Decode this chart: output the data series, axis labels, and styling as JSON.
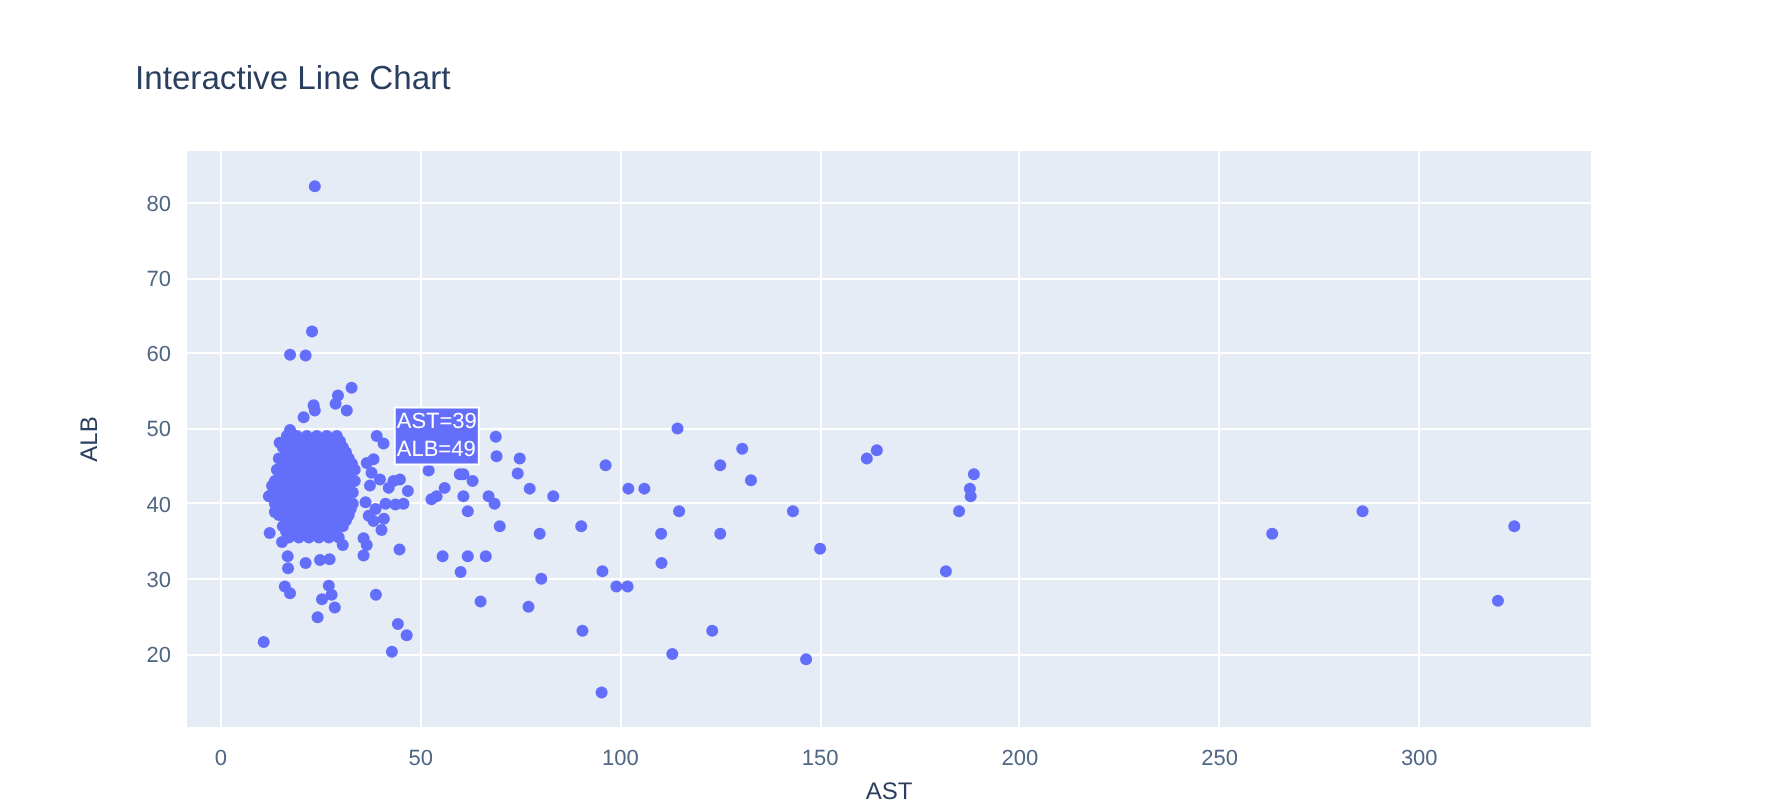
{
  "chart_data": {
    "type": "scatter",
    "title": "Interactive Line Chart",
    "xlabel": "AST",
    "ylabel": "ALB",
    "color": "#636efa",
    "marker": "circle",
    "grid": true,
    "xlim": [
      -8.5,
      343
    ],
    "ylim": [
      10.3,
      86.9
    ],
    "xticks": [
      0,
      50,
      100,
      150,
      200,
      250,
      300
    ],
    "yticks": [
      20,
      30,
      40,
      50,
      60,
      70,
      80
    ],
    "annotations": [
      {
        "text": "AST=39\nALB=49",
        "x": 39,
        "y": 49
      }
    ],
    "x": [
      23.5,
      22.8,
      17.3,
      21.2,
      32.7,
      29.3,
      31.5,
      28.7,
      23.2,
      23.5,
      14.7,
      17.3,
      20.7,
      12.8,
      12,
      13.5,
      12.2,
      15.3,
      16.7,
      16.8,
      16,
      17.3,
      10.7,
      21.2,
      24.2,
      25.3,
      27,
      27.7,
      28.5,
      27.2,
      24.8,
      30.5,
      35.7,
      36.5,
      35.7,
      38.2,
      40.2,
      40.8,
      38.8,
      44.7,
      44.3,
      46.5,
      42.8,
      38.7,
      41.2,
      43.7,
      45.7,
      46.8,
      44.8,
      43.2,
      42,
      39.8,
      37.7,
      36.5,
      38.2,
      39,
      40.7,
      37.3,
      36.2,
      37,
      52,
      52.7,
      54,
      56,
      55.5,
      60,
      61.8,
      66.3,
      65,
      59.8,
      60.7,
      63,
      60.7,
      61.8,
      67,
      68.5,
      69.8,
      68.8,
      69,
      74.8,
      74.3,
      77.3,
      83.2,
      79.8,
      80.2,
      77,
      96.3,
      90.2,
      90.5,
      95.5,
      95.3,
      99,
      101.8,
      102,
      106,
      110.2,
      110.3,
      114.3,
      114.7,
      113,
      123,
      125,
      125,
      130.5,
      132.7,
      143.2,
      150,
      146.5,
      161.7,
      164.2,
      181.5,
      184.8,
      187.5,
      187.7,
      188.5,
      263.2,
      285.8,
      323.8,
      319.7,
      16.5,
      19,
      21.5,
      24,
      26.5,
      29,
      15.5,
      18,
      20.5,
      23,
      25.5,
      28,
      30.5,
      14.5,
      17,
      19.5,
      22,
      24.5,
      27,
      29.5,
      32,
      14,
      16.5,
      19,
      21.5,
      24,
      26.5,
      29,
      31.5,
      33.5,
      13.5,
      16,
      18.5,
      21,
      23.5,
      26,
      28.5,
      31,
      33.5,
      13,
      15.5,
      18,
      20.5,
      23,
      25.5,
      28,
      30.5,
      33,
      13.5,
      16,
      18.5,
      21,
      23.5,
      26,
      28.5,
      31,
      33,
      14.5,
      17,
      19.5,
      22,
      24.5,
      27,
      29.5,
      32,
      15.5,
      18,
      20.5,
      23,
      25.5,
      28,
      30.5,
      17,
      19.5,
      22,
      24.5,
      27,
      29.5,
      17.3,
      19.8,
      22.3,
      24.8,
      27.3,
      29.8,
      16.3,
      18.8,
      21.3,
      23.8,
      26.3,
      28.8,
      31.3,
      15.3,
      17.8,
      20.3,
      22.8,
      25.3,
      27.8,
      30.3,
      32.8,
      14.8,
      17.3,
      19.8,
      22.3,
      24.8,
      27.3,
      29.8,
      32.3,
      14.3,
      16.8,
      19.3,
      21.8,
      24.3,
      26.8,
      29.3,
      31.8,
      14.3,
      16.8,
      19.3,
      21.8,
      24.3,
      26.8,
      29.3,
      31.8,
      15.3,
      17.8,
      20.3,
      22.8,
      25.3,
      27.8,
      30.3,
      32.5,
      16.3,
      18.8,
      21.3,
      23.8,
      26.3,
      28.8,
      31.3,
      16.3,
      18.8,
      21.3,
      23.8,
      26.3,
      28.8
    ],
    "values": [
      82.2,
      62.9,
      59.8,
      59.7,
      55.4,
      54.4,
      52.4,
      53.3,
      53.1,
      52.4,
      48.1,
      49.8,
      51.5,
      42.4,
      41,
      38.9,
      36.1,
      34.9,
      33,
      31.4,
      29,
      28.1,
      21.6,
      32.1,
      24.9,
      27.3,
      29.1,
      27.9,
      26.2,
      32.6,
      32.5,
      34.5,
      33.1,
      34.5,
      35.4,
      37.7,
      36.5,
      38,
      27.9,
      33.9,
      24,
      22.5,
      20.3,
      39.3,
      40,
      39.9,
      40,
      41.7,
      43.2,
      43,
      42.1,
      43.2,
      44.1,
      45.4,
      45.9,
      49,
      48,
      42.4,
      40.2,
      38.4,
      44.4,
      40.6,
      41,
      42.1,
      33,
      30.9,
      33,
      33,
      27,
      43.9,
      43.9,
      43,
      41,
      39,
      41,
      40,
      37,
      48.9,
      46.3,
      46,
      44,
      42,
      41,
      36,
      30,
      26.3,
      45.1,
      37,
      23.1,
      31,
      14.9,
      29,
      29,
      42,
      42,
      36,
      32.1,
      50,
      39,
      20,
      23.1,
      45.1,
      36,
      47.3,
      43.1,
      39,
      34,
      19.3,
      46,
      47.1,
      31,
      39,
      42,
      41,
      43.9,
      36,
      39,
      37,
      27.1,
      49,
      49,
      49,
      49,
      49,
      49,
      47.5,
      47.5,
      47.5,
      47.5,
      47.5,
      47.5,
      47.5,
      46,
      46,
      46,
      46,
      46,
      46,
      46,
      46,
      44.5,
      44.5,
      44.5,
      44.5,
      44.5,
      44.5,
      44.5,
      44.5,
      44.5,
      43,
      43,
      43,
      43,
      43,
      43,
      43,
      43,
      43,
      41.5,
      41.5,
      41.5,
      41.5,
      41.5,
      41.5,
      41.5,
      41.5,
      41.5,
      40,
      40,
      40,
      40,
      40,
      40,
      40,
      40,
      40,
      38.5,
      38.5,
      38.5,
      38.5,
      38.5,
      38.5,
      38.5,
      38.5,
      37,
      37,
      37,
      37,
      37,
      37,
      37,
      35.5,
      35.5,
      35.5,
      35.5,
      35.5,
      35.5,
      48.3,
      48.3,
      48.3,
      48.3,
      48.3,
      48.3,
      46.8,
      46.8,
      46.8,
      46.8,
      46.8,
      46.8,
      46.8,
      45.3,
      45.3,
      45.3,
      45.3,
      45.3,
      45.3,
      45.3,
      45.3,
      43.8,
      43.8,
      43.8,
      43.8,
      43.8,
      43.8,
      43.8,
      43.8,
      42.3,
      42.3,
      42.3,
      42.3,
      42.3,
      42.3,
      42.3,
      42.3,
      40.8,
      40.8,
      40.8,
      40.8,
      40.8,
      40.8,
      40.8,
      40.8,
      39.3,
      39.3,
      39.3,
      39.3,
      39.3,
      39.3,
      39.3,
      39.3,
      37.8,
      37.8,
      37.8,
      37.8,
      37.8,
      37.8,
      37.8,
      36.3,
      36.3,
      36.3,
      36.3,
      36.3,
      36.3
    ]
  }
}
